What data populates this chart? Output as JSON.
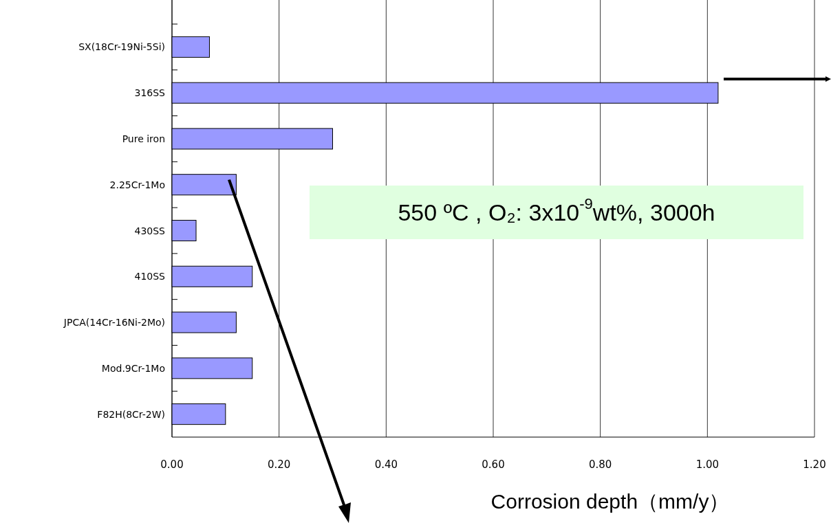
{
  "chart_data": {
    "type": "bar",
    "orientation": "horizontal",
    "xlabel": "Corrosion depth（mm/y）",
    "categories": [
      "SX(18Cr-19Ni-5Si)",
      "316SS",
      "Pure iron",
      "2.25Cr-1Mo",
      "430SS",
      "410SS",
      "JPCA(14Cr-16Ni-2Mo)",
      "Mod.9Cr-1Mo",
      "F82H(8Cr-2W)"
    ],
    "values": [
      0.07,
      1.02,
      0.3,
      0.12,
      0.045,
      0.15,
      0.12,
      0.15,
      0.1
    ],
    "color": "#9999ff",
    "xlim": [
      0,
      1.2
    ],
    "xticks": [
      {
        "value": 0,
        "label": "0.00"
      },
      {
        "value": 0.2,
        "label": "0.20"
      },
      {
        "value": 0.4,
        "label": "0.40"
      },
      {
        "value": 0.6,
        "label": "0.60"
      },
      {
        "value": 0.8,
        "label": "0.80"
      },
      {
        "value": 1,
        "label": "1.00"
      },
      {
        "value": 1.2,
        "label": "1.20"
      }
    ],
    "grid": "x",
    "annotations": [
      "550 ºC , O₂: 3x10$^{-9}$wt%, 3000h"
    ]
  }
}
